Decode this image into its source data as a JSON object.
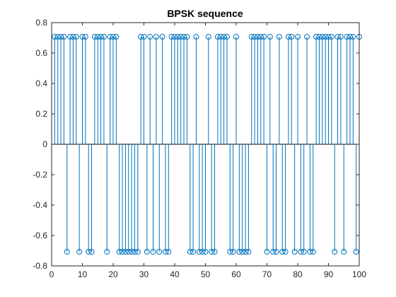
{
  "chart_data": {
    "type": "stem",
    "title": "BPSK sequence",
    "xlabel": "",
    "ylabel": "",
    "xlim": [
      0,
      100
    ],
    "ylim": [
      -0.8,
      0.8
    ],
    "xticks": [
      "0",
      "10",
      "20",
      "30",
      "40",
      "50",
      "60",
      "70",
      "80",
      "90",
      "100"
    ],
    "yticks": [
      "0.8",
      "0.6",
      "0.4",
      "0.2",
      "0",
      "-0.2",
      "-0.4",
      "-0.6",
      "-0.8"
    ],
    "grid": false,
    "marker": "circle",
    "color": "#0072BD",
    "x": [
      1,
      2,
      3,
      4,
      5,
      6,
      7,
      8,
      9,
      10,
      11,
      12,
      13,
      14,
      15,
      16,
      17,
      18,
      19,
      20,
      21,
      22,
      23,
      24,
      25,
      26,
      27,
      28,
      29,
      30,
      31,
      32,
      33,
      34,
      35,
      36,
      37,
      38,
      39,
      40,
      41,
      42,
      43,
      44,
      45,
      46,
      47,
      48,
      49,
      50,
      51,
      52,
      53,
      54,
      55,
      56,
      57,
      58,
      59,
      60,
      61,
      62,
      63,
      64,
      65,
      66,
      67,
      68,
      69,
      70,
      71,
      72,
      73,
      74,
      75,
      76,
      77,
      78,
      79,
      80,
      81,
      82,
      83,
      84,
      85,
      86,
      87,
      88,
      89,
      90,
      91,
      92,
      93,
      94,
      95,
      96,
      97,
      98,
      99,
      100
    ],
    "y": [
      0.707,
      0.707,
      0.707,
      0.707,
      -0.707,
      0.707,
      0.707,
      0.707,
      -0.707,
      0.707,
      0.707,
      -0.707,
      -0.707,
      0.707,
      0.707,
      0.707,
      0.707,
      -0.707,
      0.707,
      0.707,
      0.707,
      -0.707,
      -0.707,
      -0.707,
      -0.707,
      -0.707,
      -0.707,
      -0.707,
      0.707,
      0.707,
      -0.707,
      0.707,
      -0.707,
      0.707,
      -0.707,
      0.707,
      -0.707,
      -0.707,
      0.707,
      0.707,
      0.707,
      0.707,
      0.707,
      0.707,
      -0.707,
      -0.707,
      0.707,
      -0.707,
      -0.707,
      -0.707,
      0.707,
      -0.707,
      -0.707,
      0.707,
      0.707,
      0.707,
      0.707,
      -0.707,
      -0.707,
      0.707,
      -0.707,
      -0.707,
      -0.707,
      -0.707,
      0.707,
      0.707,
      0.707,
      0.707,
      0.707,
      -0.707,
      0.707,
      -0.707,
      -0.707,
      0.707,
      -0.707,
      -0.707,
      0.707,
      0.707,
      -0.707,
      0.707,
      -0.707,
      -0.707,
      0.707,
      -0.707,
      -0.707,
      0.707,
      0.707,
      0.707,
      0.707,
      0.707,
      0.707,
      -0.707,
      0.707,
      0.707,
      -0.707,
      0.707,
      0.707,
      0.707,
      -0.707,
      0.707
    ]
  }
}
